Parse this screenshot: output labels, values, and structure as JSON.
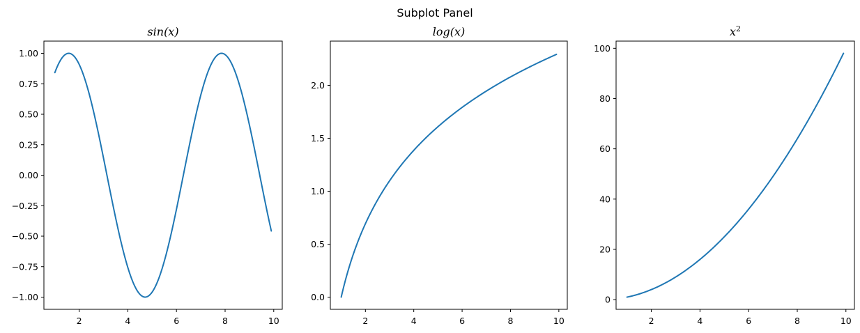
{
  "figure": {
    "title": "Subplot Panel"
  },
  "chart_data": [
    {
      "type": "line",
      "title": "sin(x)",
      "title_math": {
        "base": "sin",
        "arg": "(x)"
      },
      "xlabel": "",
      "ylabel": "",
      "xlim": [
        0.55,
        10.35
      ],
      "ylim": [
        -1.1,
        1.1
      ],
      "xticks": [
        2,
        4,
        6,
        8,
        10
      ],
      "yticks": [
        -1.0,
        -0.75,
        -0.5,
        -0.25,
        0.0,
        0.25,
        0.5,
        0.75,
        1.0
      ],
      "ytick_labels": [
        "−1.00",
        "−0.75",
        "−0.50",
        "−0.25",
        "0.00",
        "0.25",
        "0.50",
        "0.75",
        "1.00"
      ],
      "xtick_labels": [
        "2",
        "4",
        "6",
        "8",
        "10"
      ],
      "function": "sin",
      "x_range": [
        1.0,
        9.9
      ],
      "x": [
        1.0,
        1.5,
        2.0,
        2.5,
        3.0,
        3.5,
        4.0,
        4.5,
        5.0,
        5.5,
        6.0,
        6.5,
        7.0,
        7.5,
        8.0,
        8.5,
        9.0,
        9.5,
        9.9
      ],
      "y": [
        0.84,
        1.0,
        0.91,
        0.6,
        0.14,
        -0.35,
        -0.76,
        -0.98,
        -0.96,
        -0.71,
        -0.28,
        0.22,
        0.66,
        0.94,
        0.99,
        0.8,
        0.41,
        -0.08,
        -0.46
      ],
      "series": [
        {
          "color": "#1f77b4"
        }
      ]
    },
    {
      "type": "line",
      "title": "log(x)",
      "title_math": {
        "base": "log",
        "arg": "(x)"
      },
      "xlabel": "",
      "ylabel": "",
      "xlim": [
        0.55,
        10.35
      ],
      "ylim": [
        -0.115,
        2.418
      ],
      "xticks": [
        2,
        4,
        6,
        8,
        10
      ],
      "yticks": [
        0.0,
        0.5,
        1.0,
        1.5,
        2.0
      ],
      "ytick_labels": [
        "0.0",
        "0.5",
        "1.0",
        "1.5",
        "2.0"
      ],
      "xtick_labels": [
        "2",
        "4",
        "6",
        "8",
        "10"
      ],
      "function": "log",
      "x_range": [
        1.0,
        9.9
      ],
      "x": [
        1.0,
        2.0,
        3.0,
        4.0,
        5.0,
        6.0,
        7.0,
        8.0,
        9.0,
        9.9
      ],
      "y": [
        0.0,
        0.69,
        1.1,
        1.39,
        1.61,
        1.79,
        1.95,
        2.08,
        2.2,
        2.29
      ],
      "series": [
        {
          "color": "#1f77b4"
        }
      ]
    },
    {
      "type": "line",
      "title": "x2",
      "title_math": {
        "base": "x",
        "sup": "2"
      },
      "xlabel": "",
      "ylabel": "",
      "xlim": [
        0.55,
        10.35
      ],
      "ylim": [
        -3.85,
        102.86
      ],
      "xticks": [
        2,
        4,
        6,
        8,
        10
      ],
      "yticks": [
        0,
        20,
        40,
        60,
        80,
        100
      ],
      "ytick_labels": [
        "0",
        "20",
        "40",
        "60",
        "80",
        "100"
      ],
      "xtick_labels": [
        "2",
        "4",
        "6",
        "8",
        "10"
      ],
      "function": "square",
      "x_range": [
        1.0,
        9.9
      ],
      "x": [
        1.0,
        2.0,
        3.0,
        4.0,
        5.0,
        6.0,
        7.0,
        8.0,
        9.0,
        9.9
      ],
      "y": [
        1.0,
        4.0,
        9.0,
        16.0,
        25.0,
        36.0,
        49.0,
        64.0,
        81.0,
        98.01
      ],
      "series": [
        {
          "color": "#1f77b4"
        }
      ]
    }
  ]
}
